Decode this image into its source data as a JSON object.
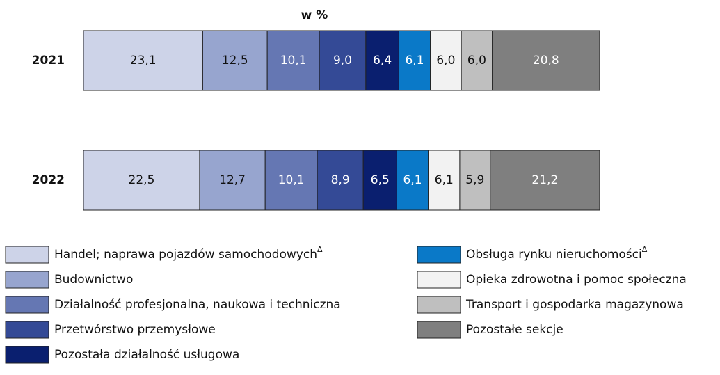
{
  "chart_data": {
    "type": "stacked_bar_horizontal",
    "title": "w %",
    "categories": [
      "2021",
      "2022"
    ],
    "series": [
      {
        "name": "Handel; naprawa pojazdów samochodowych",
        "footnote_marker": "Δ",
        "color": "#cdd3e8",
        "values": [
          23.1,
          22.5
        ],
        "value_labels": [
          "23,1",
          "22,5"
        ]
      },
      {
        "name": "Budownictwo",
        "color": "#97a5cf",
        "values": [
          12.5,
          12.7
        ],
        "value_labels": [
          "12,5",
          "12,7"
        ]
      },
      {
        "name": "Działalność profesjonalna, naukowa i techniczna",
        "color": "#6577b3",
        "values": [
          10.1,
          10.1
        ],
        "value_labels": [
          "10,1",
          "10,1"
        ]
      },
      {
        "name": "Przetwórstwo przemysłowe",
        "color": "#344a96",
        "values": [
          9.0,
          8.9
        ],
        "value_labels": [
          "9,0",
          "8,9"
        ]
      },
      {
        "name": "Pozostała działalność usługowa",
        "color": "#0a1f6f",
        "values": [
          6.4,
          6.5
        ],
        "value_labels": [
          "6,4",
          "6,5"
        ]
      },
      {
        "name": "Obsługa rynku nieruchomości",
        "footnote_marker": "Δ",
        "color": "#0a79c8",
        "values": [
          6.1,
          6.1
        ],
        "value_labels": [
          "6,1",
          "6,1"
        ]
      },
      {
        "name": "Opieka zdrowotna i pomoc społeczna",
        "color": "#f2f2f2",
        "values": [
          6.0,
          6.1
        ],
        "value_labels": [
          "6,0",
          "6,1"
        ]
      },
      {
        "name": "Transport i gospodarka magazynowa",
        "color": "#bfbfbf",
        "values": [
          6.0,
          5.9
        ],
        "value_labels": [
          "6,0",
          "5,9"
        ]
      },
      {
        "name": "Pozostałe sekcje",
        "color": "#7f7f7f",
        "values": [
          20.8,
          21.2
        ],
        "value_labels": [
          "20,8",
          "21,2"
        ]
      }
    ]
  }
}
